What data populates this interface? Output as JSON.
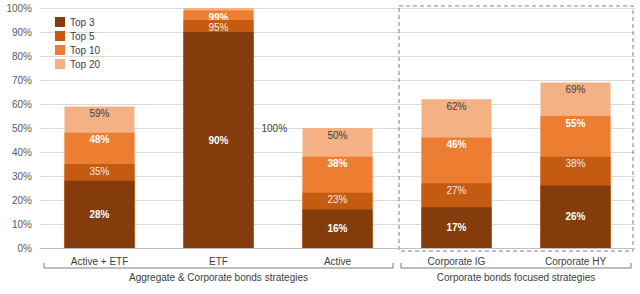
{
  "chart_data": {
    "type": "bar",
    "categories": [
      "Active + ETF",
      "ETF",
      "Active",
      "Corporate IG",
      "Corporate HY"
    ],
    "series": [
      {
        "name": "Top 3",
        "color": "#843c0c",
        "values": [
          28,
          90,
          16,
          17,
          26
        ],
        "value_labels": [
          "28%",
          "90%",
          "16%",
          "17%",
          "26%"
        ]
      },
      {
        "name": "Top 5",
        "color": "#c55a11",
        "values": [
          35,
          95,
          23,
          27,
          38
        ],
        "value_labels": [
          "35%",
          "95%",
          "23%",
          "27%",
          "38%"
        ]
      },
      {
        "name": "Top 10",
        "color": "#ed7d31",
        "values": [
          48,
          99,
          38,
          46,
          55
        ],
        "value_labels": [
          "48%",
          "99%",
          "38%",
          "46%",
          "55%"
        ]
      },
      {
        "name": "Top 20",
        "color": "#f4b183",
        "values": [
          59,
          100,
          50,
          62,
          69
        ],
        "value_labels": [
          "59%",
          "100%",
          "50%",
          "62%",
          "69%"
        ]
      }
    ],
    "ylim": [
      0,
      100
    ],
    "yticks": [
      {
        "value": 0,
        "label": "0%"
      },
      {
        "value": 10,
        "label": "10%"
      },
      {
        "value": 20,
        "label": "20%"
      },
      {
        "value": 30,
        "label": "30%"
      },
      {
        "value": 40,
        "label": "40%"
      },
      {
        "value": 50,
        "label": "50%"
      },
      {
        "value": 60,
        "label": "60%"
      },
      {
        "value": 70,
        "label": "70%"
      },
      {
        "value": 80,
        "label": "80%"
      },
      {
        "value": 90,
        "label": "90%"
      },
      {
        "value": 100,
        "label": "100%"
      }
    ],
    "grid": true,
    "legend": "upper left",
    "data_labels": true,
    "groups": [
      {
        "label": "Aggregate & Corporate bonds strategies",
        "categories": [
          "Active + ETF",
          "ETF",
          "Active"
        ]
      },
      {
        "label": "Corporate bonds focused strategies",
        "categories": [
          "Corporate IG",
          "Corporate HY"
        ]
      }
    ]
  }
}
